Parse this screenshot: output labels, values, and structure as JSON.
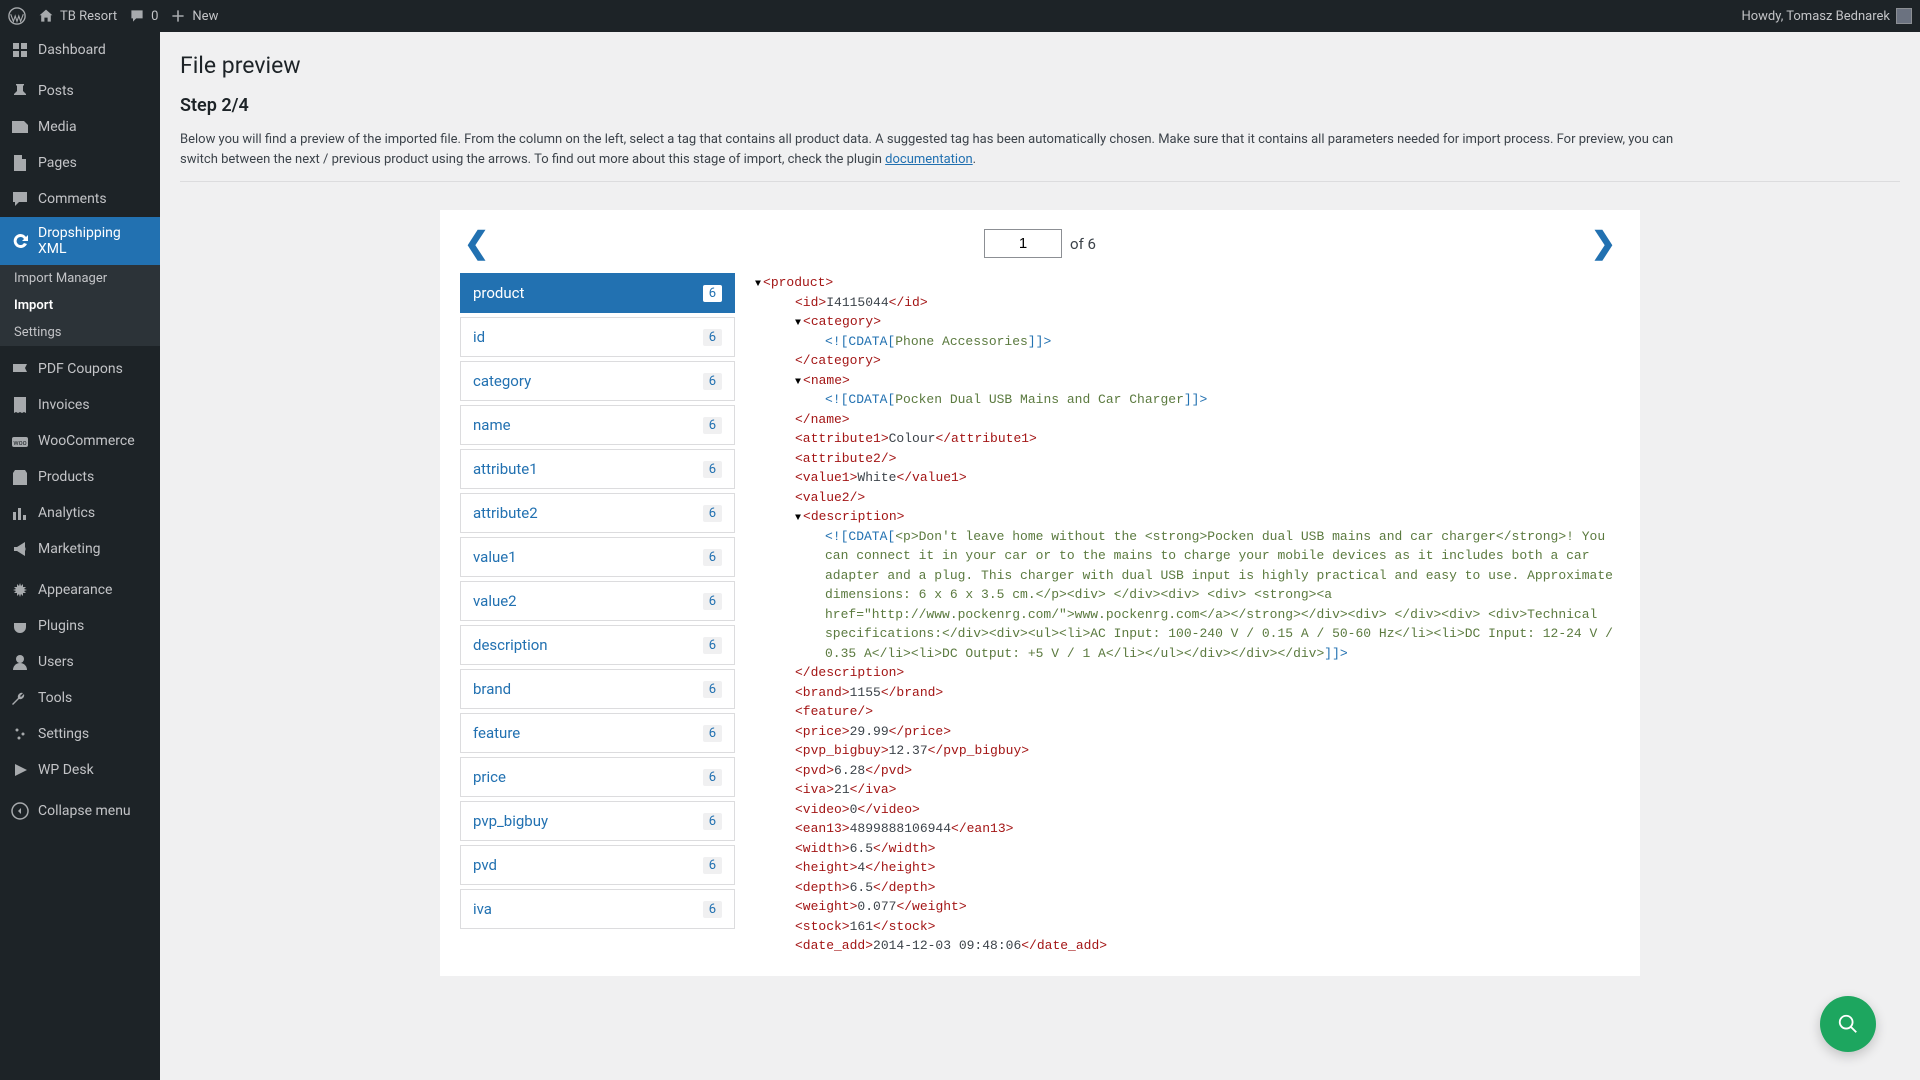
{
  "adminbar": {
    "site_name": "TB Resort",
    "comments_count": "0",
    "new_label": "New",
    "greeting": "Howdy, Tomasz Bednarek"
  },
  "sidebar": {
    "items": [
      {
        "icon": "dashboard",
        "label": "Dashboard"
      },
      {
        "icon": "pin",
        "label": "Posts"
      },
      {
        "icon": "media",
        "label": "Media"
      },
      {
        "icon": "page",
        "label": "Pages"
      },
      {
        "icon": "comment",
        "label": "Comments"
      },
      {
        "icon": "update",
        "label": "Dropshipping XML",
        "active": true
      },
      {
        "icon": "pdf",
        "label": "PDF Coupons"
      },
      {
        "icon": "invoice",
        "label": "Invoices"
      },
      {
        "icon": "woo",
        "label": "WooCommerce"
      },
      {
        "icon": "product",
        "label": "Products"
      },
      {
        "icon": "analytics",
        "label": "Analytics"
      },
      {
        "icon": "marketing",
        "label": "Marketing"
      },
      {
        "icon": "appearance",
        "label": "Appearance"
      },
      {
        "icon": "plugin",
        "label": "Plugins"
      },
      {
        "icon": "users",
        "label": "Users"
      },
      {
        "icon": "tools",
        "label": "Tools"
      },
      {
        "icon": "settings",
        "label": "Settings"
      },
      {
        "icon": "wpdesk",
        "label": "WP Desk"
      },
      {
        "icon": "collapse",
        "label": "Collapse menu"
      }
    ],
    "submenu": [
      {
        "label": "Import Manager"
      },
      {
        "label": "Import",
        "active": true
      },
      {
        "label": "Settings"
      }
    ]
  },
  "page": {
    "title": "File preview",
    "step": "Step 2/4",
    "desc_before": "Below you will find a preview of the imported file. From the column on the left, select a tag that contains all product data. A suggested tag has been automatically chosen. Make sure that it contains all parameters needed for import process. For preview, you can switch between the next / previous product using the arrows. To find out more about this stage of import, check the plugin ",
    "doc_link": "documentation",
    "after_link": "."
  },
  "pager": {
    "current": "1",
    "of_label": "of 6"
  },
  "tags": [
    {
      "label": "product",
      "count": "6",
      "active": true
    },
    {
      "label": "id",
      "count": "6"
    },
    {
      "label": "category",
      "count": "6"
    },
    {
      "label": "name",
      "count": "6"
    },
    {
      "label": "attribute1",
      "count": "6"
    },
    {
      "label": "attribute2",
      "count": "6"
    },
    {
      "label": "value1",
      "count": "6"
    },
    {
      "label": "value2",
      "count": "6"
    },
    {
      "label": "description",
      "count": "6"
    },
    {
      "label": "brand",
      "count": "6"
    },
    {
      "label": "feature",
      "count": "6"
    },
    {
      "label": "price",
      "count": "6"
    },
    {
      "label": "pvp_bigbuy",
      "count": "6"
    },
    {
      "label": "pvd",
      "count": "6"
    },
    {
      "label": "iva",
      "count": "6"
    }
  ],
  "xml": {
    "id": "I4115044",
    "category": "Phone Accessories",
    "name": "Pocken Dual USB Mains and Car Charger",
    "attribute1": "Colour",
    "value1": "White",
    "description": "<p>Don't leave home without the <strong>Pocken dual USB mains and car charger</strong>! You can connect it in your car or to the mains to charge your mobile devices as it includes both a car adapter and a plug. This charger with dual USB input is highly practical and easy to use. Approximate dimensions: 6 x 6 x 3.5 cm.</p><div> </div><div> <div> <strong><a href=\"http://www.pockenrg.com/\">www.pockenrg.com</a></strong></div><div> </div><div> <div>Technical specifications:</div><div><ul><li>AC Input: 100-240 V / 0.15 A / 50-60 Hz</li><li>DC Input: 12-24 V / 0.35 A</li><li>DC Output: +5 V / 1 A</li></ul></div></div></div>",
    "brand": "1155",
    "price": "29.99",
    "pvp_bigbuy": "12.37",
    "pvd": "6.28",
    "iva": "21",
    "video": "0",
    "ean13": "4899888106944",
    "width": "6.5",
    "height": "4",
    "depth": "6.5",
    "weight": "0.077",
    "stock": "161",
    "date_add": "2014-12-03 09:48:06"
  },
  "colors": {
    "accent": "#2271b1",
    "xml_tag": "#a31515",
    "xml_cdata": "#2271b1",
    "xml_cdata_val": "#5b7a3f",
    "help_bg": "#1da65f"
  }
}
